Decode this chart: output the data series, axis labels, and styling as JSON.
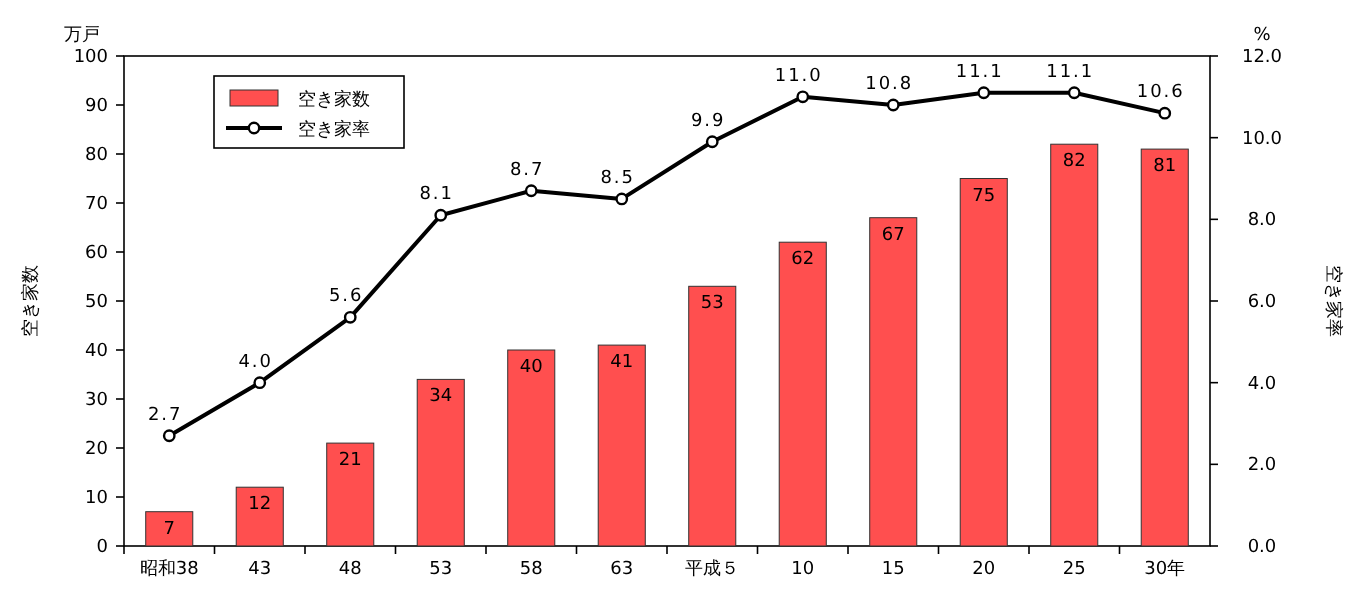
{
  "chart_data": {
    "type": "bar",
    "ylabel": "空き家数",
    "y2label": "空き家率",
    "annotations": [
      "万戸",
      "%"
    ],
    "categories": [
      "昭和38",
      "43",
      "48",
      "53",
      "58",
      "63",
      "平成５",
      "10",
      "15",
      "20",
      "25",
      "30年"
    ],
    "series": [
      {
        "name": "空き家数",
        "color": "#ff4f4f",
        "values": [
          7,
          12,
          21,
          34,
          40,
          41,
          53,
          62,
          67,
          75,
          82,
          81
        ]
      },
      {
        "name": "空き家率",
        "type": "line",
        "axis": "y2",
        "color": "#000000",
        "marker": "circle",
        "values": [
          2.7,
          4.0,
          5.6,
          8.1,
          8.7,
          8.5,
          9.9,
          11.0,
          10.8,
          11.1,
          11.1,
          10.6
        ],
        "value_labels": [
          "2.7",
          "4.0",
          "5.6",
          "8.1",
          "8.7",
          "8.5",
          "9.9",
          "11.0",
          "10.8",
          "11.1",
          "11.1",
          "10.6"
        ]
      }
    ],
    "data_labels": true,
    "legend": "top left",
    "grid": false,
    "ylim": [
      0,
      100
    ],
    "yticks": [
      0,
      10,
      20,
      30,
      40,
      50,
      60,
      70,
      80,
      90,
      100
    ],
    "y2lim": [
      0,
      12
    ],
    "y2ticks": [
      {
        "value": 0,
        "label": "0.0"
      },
      {
        "value": 2,
        "label": "2.0"
      },
      {
        "value": 4,
        "label": "4.0"
      },
      {
        "value": 6,
        "label": "6.0"
      },
      {
        "value": 8,
        "label": "8.0"
      },
      {
        "value": 10,
        "label": "10.0"
      },
      {
        "value": 12,
        "label": "12.0"
      }
    ]
  }
}
